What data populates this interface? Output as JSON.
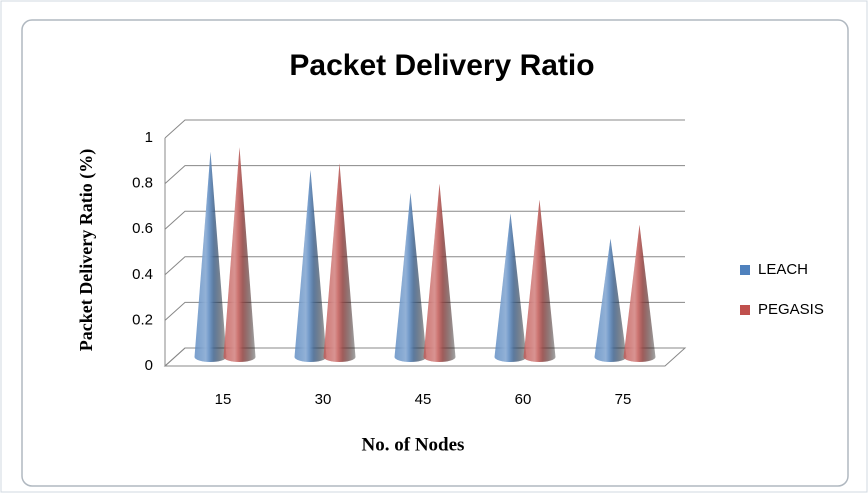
{
  "chart_data": {
    "type": "cone3d",
    "title": "Packet Delivery Ratio",
    "y_label": "Packet Delivery Ratio (%)",
    "x_label": "No. of Nodes",
    "categories": [
      "15",
      "30",
      "45",
      "60",
      "75"
    ],
    "series": [
      {
        "name": "LEACH",
        "color": "#4f81bd",
        "values": [
          0.9,
          0.82,
          0.72,
          0.63,
          0.52
        ]
      },
      {
        "name": "PEGASIS",
        "color": "#c0504d",
        "values": [
          0.92,
          0.85,
          0.76,
          0.69,
          0.58
        ]
      }
    ],
    "ylim": [
      0,
      1
    ],
    "yticks": [
      0,
      0.2,
      0.4,
      0.6,
      0.8,
      1
    ],
    "grid": true,
    "legend": "right"
  }
}
